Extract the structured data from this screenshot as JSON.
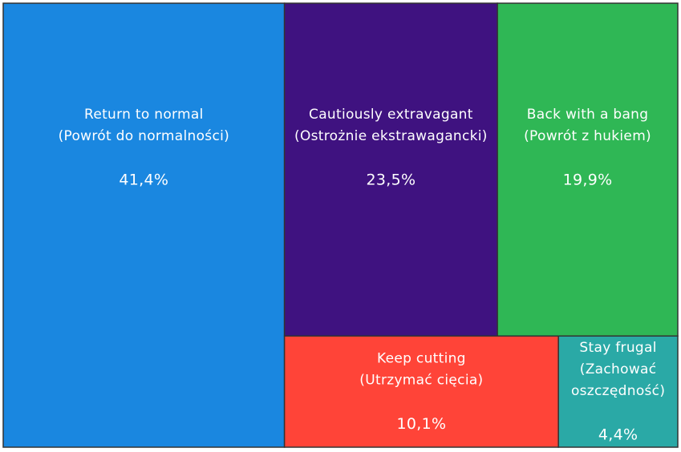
{
  "chart_data": {
    "type": "treemap",
    "categories": [
      [
        "Return to normal",
        "(Powrót do normalności)"
      ],
      [
        "Cautiously extravagant",
        "(Ostrożnie ekstrawagancki)"
      ],
      [
        "Back with a bang",
        "(Powrót z hukiem)"
      ],
      [
        "Keep cutting",
        "(Utrzymać cięcia)"
      ],
      [
        "Stay frugal",
        "(Zachować",
        "oszczędność)"
      ]
    ],
    "values": [
      41.4,
      23.5,
      19.9,
      10.1,
      4.4
    ],
    "value_labels": [
      "41,4%",
      "23,5%",
      "19,9%",
      "10,1%",
      "4,4%"
    ],
    "colors": [
      "#1a87e0",
      "#3f1280",
      "#2fb755",
      "#ff4438",
      "#2aa9a6"
    ]
  }
}
